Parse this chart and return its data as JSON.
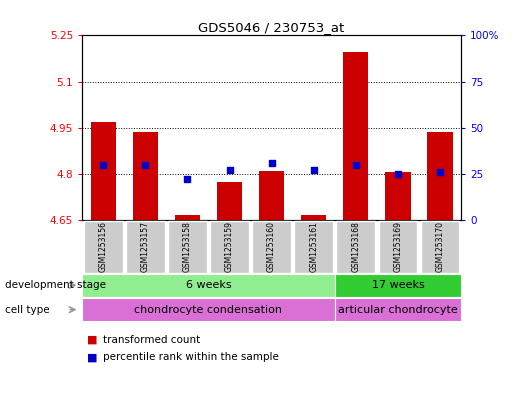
{
  "title": "GDS5046 / 230753_at",
  "samples": [
    "GSM1253156",
    "GSM1253157",
    "GSM1253158",
    "GSM1253159",
    "GSM1253160",
    "GSM1253161",
    "GSM1253168",
    "GSM1253169",
    "GSM1253170"
  ],
  "transformed_count": [
    4.97,
    4.935,
    4.668,
    4.775,
    4.808,
    4.668,
    5.195,
    4.805,
    4.935
  ],
  "percentile_rank": [
    30,
    30,
    22,
    27,
    31,
    27,
    30,
    25,
    26
  ],
  "ylim_left": [
    4.65,
    5.25
  ],
  "ylim_right": [
    0,
    100
  ],
  "yticks_left": [
    4.65,
    4.8,
    4.95,
    5.1,
    5.25
  ],
  "yticks_right": [
    0,
    25,
    50,
    75,
    100
  ],
  "ytick_labels_left": [
    "4.65",
    "4.8",
    "4.95",
    "5.1",
    "5.25"
  ],
  "ytick_labels_right": [
    "0",
    "25",
    "50",
    "75",
    "100%"
  ],
  "grid_yticks": [
    4.8,
    4.95,
    5.1
  ],
  "bar_color": "#cc0000",
  "dot_color": "#0000cc",
  "dev_stage_groups": [
    {
      "label": "6 weeks",
      "n_samples": 6,
      "color": "#90ee90"
    },
    {
      "label": "17 weeks",
      "n_samples": 3,
      "color": "#32cd32"
    }
  ],
  "cell_type_groups": [
    {
      "label": "chondrocyte condensation",
      "n_samples": 6,
      "color": "#da70d6"
    },
    {
      "label": "articular chondrocyte",
      "n_samples": 3,
      "color": "#da70d6"
    }
  ],
  "dev_stage_label": "development stage",
  "cell_type_label": "cell type",
  "legend_tc": "transformed count",
  "legend_pr": "percentile rank within the sample",
  "background_color": "#ffffff",
  "plot_bg": "#ffffff",
  "xticklabel_bg": "#cccccc",
  "arrow_color": "#999999"
}
